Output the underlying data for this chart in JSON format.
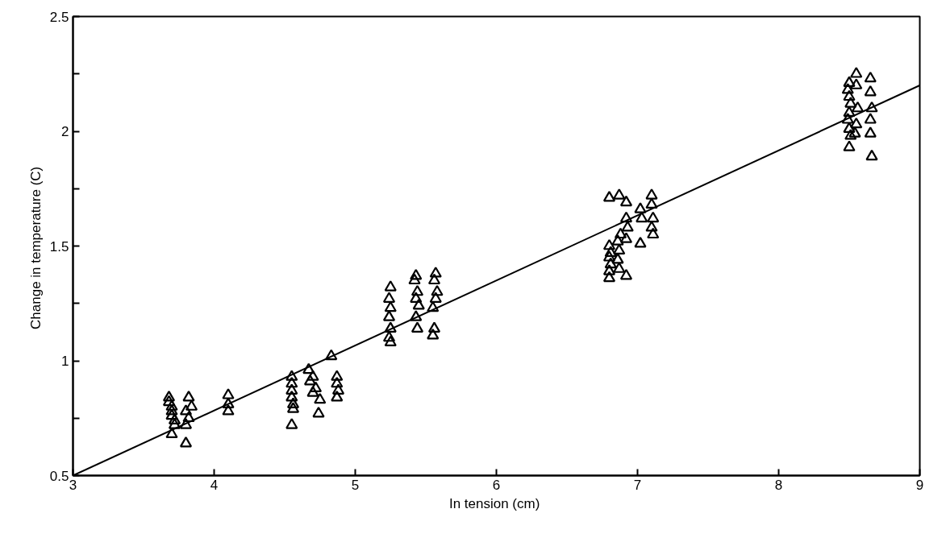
{
  "chart_data": {
    "type": "scatter",
    "xlabel": "In tension  (cm)",
    "ylabel": "Change in temperature  (C)",
    "xlim": [
      3,
      9
    ],
    "ylim": [
      0.5,
      2.5
    ],
    "xticks": [
      3,
      4,
      5,
      6,
      7,
      8,
      9
    ],
    "yticks": [
      0.5,
      {
        "value": 0.75,
        "label": null
      },
      1,
      {
        "value": 1.25,
        "label": null
      },
      1.5,
      {
        "value": 1.75,
        "label": null
      },
      2,
      {
        "value": 2.25,
        "label": null
      },
      2.5
    ],
    "grid": false,
    "series": [
      {
        "color": "#000000",
        "marker": "triangle",
        "x": [
          3.68,
          3.68,
          3.7,
          3.7,
          3.7,
          3.72,
          3.72,
          3.7,
          3.82,
          3.84,
          3.8,
          3.82,
          3.8,
          3.8,
          4.1,
          4.1,
          4.1,
          4.55,
          4.55,
          4.55,
          4.55,
          4.56,
          4.56,
          4.55,
          4.67,
          4.7,
          4.68,
          4.72,
          4.7,
          4.75,
          4.74,
          4.83,
          4.87,
          4.87,
          4.88,
          4.87,
          5.25,
          5.24,
          5.25,
          5.24,
          5.25,
          5.24,
          5.25,
          5.43,
          5.42,
          5.44,
          5.43,
          5.45,
          5.43,
          5.44,
          5.57,
          5.56,
          5.58,
          5.57,
          5.55,
          5.56,
          5.55,
          6.8,
          6.8,
          6.81,
          6.8,
          6.81,
          6.8,
          6.8,
          6.87,
          6.88,
          6.86,
          6.87,
          6.86,
          6.87,
          6.92,
          6.92,
          6.93,
          6.92,
          6.92,
          7.02,
          7.03,
          7.02,
          7.1,
          7.1,
          7.11,
          7.1,
          7.11,
          8.5,
          8.49,
          8.5,
          8.51,
          8.5,
          8.49,
          8.5,
          8.51,
          8.5,
          8.55,
          8.55,
          8.56,
          8.55,
          8.54,
          8.65,
          8.65,
          8.66,
          8.65,
          8.65,
          8.66
        ],
        "values": [
          0.84,
          0.82,
          0.8,
          0.78,
          0.76,
          0.74,
          0.72,
          0.68,
          0.84,
          0.8,
          0.78,
          0.75,
          0.72,
          0.64,
          0.85,
          0.81,
          0.78,
          0.93,
          0.9,
          0.87,
          0.84,
          0.81,
          0.79,
          0.72,
          0.96,
          0.93,
          0.91,
          0.88,
          0.86,
          0.83,
          0.77,
          1.02,
          0.93,
          0.9,
          0.87,
          0.84,
          1.32,
          1.27,
          1.23,
          1.19,
          1.14,
          1.1,
          1.08,
          1.37,
          1.35,
          1.3,
          1.27,
          1.24,
          1.19,
          1.14,
          1.38,
          1.35,
          1.3,
          1.27,
          1.23,
          1.14,
          1.11,
          1.71,
          1.5,
          1.47,
          1.45,
          1.42,
          1.39,
          1.36,
          1.72,
          1.55,
          1.52,
          1.48,
          1.44,
          1.4,
          1.69,
          1.62,
          1.58,
          1.53,
          1.37,
          1.66,
          1.62,
          1.51,
          1.72,
          1.68,
          1.62,
          1.58,
          1.55,
          2.21,
          2.18,
          2.15,
          2.12,
          2.08,
          2.05,
          2.01,
          1.98,
          1.93,
          2.25,
          2.2,
          2.1,
          2.03,
          1.99,
          2.23,
          2.17,
          2.1,
          2.05,
          1.99,
          1.89
        ]
      },
      {
        "type": "line",
        "color": "#000000",
        "line_style": "solid",
        "x": [
          3,
          9
        ],
        "values": [
          0.5,
          2.2
        ]
      }
    ]
  }
}
